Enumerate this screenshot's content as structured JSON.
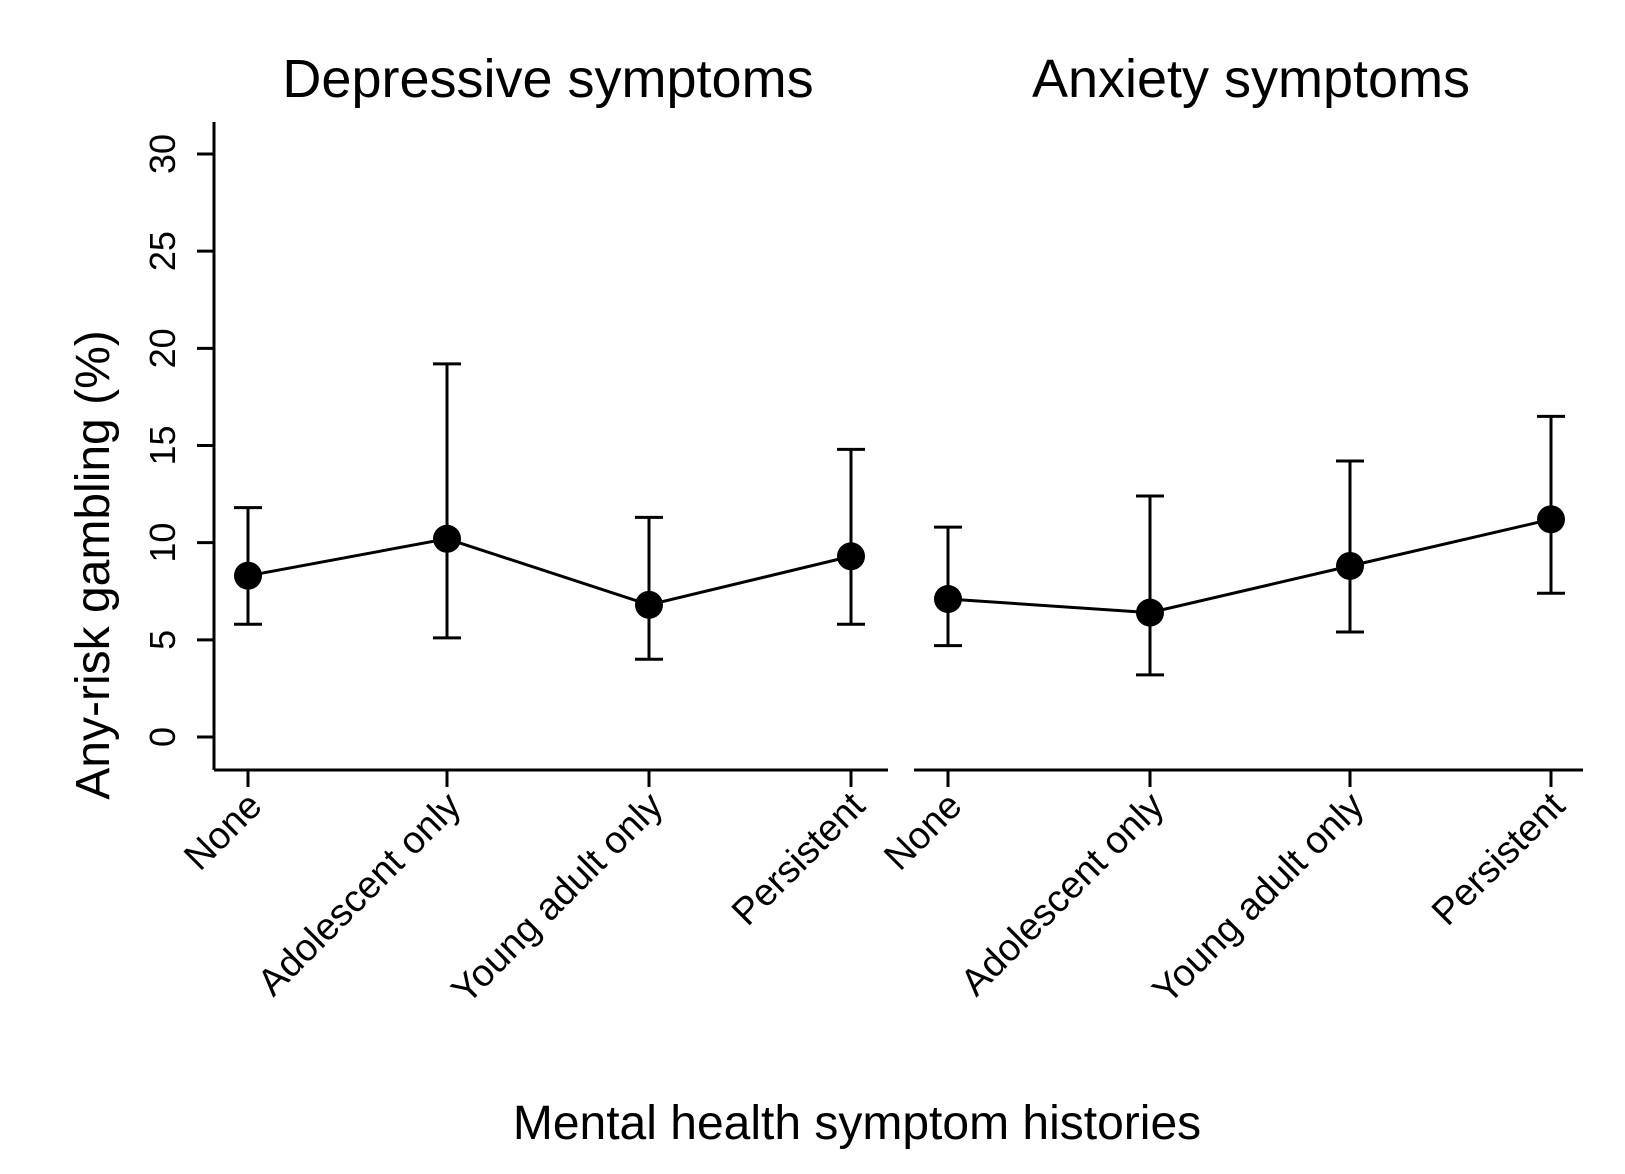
{
  "chart_data": {
    "type": "line",
    "xlabel": "Mental health symptom histories",
    "ylabel": "Any-risk gambling (%)",
    "ylim": [
      0,
      30
    ],
    "yticks": [
      0,
      5,
      10,
      15,
      20,
      25,
      30
    ],
    "ytick_labels": [
      "0",
      "5",
      "10",
      "15",
      "20",
      "25",
      "30"
    ],
    "grid": false,
    "panels": [
      {
        "title": "Depressive symptoms",
        "categories": [
          "None",
          "Adolescent only",
          "Young adult only",
          "Persistent"
        ],
        "values": [
          8.3,
          10.2,
          6.8,
          9.3
        ],
        "ci_lower": [
          5.8,
          5.1,
          4.0,
          5.8
        ],
        "ci_upper": [
          11.8,
          19.2,
          11.3,
          14.8
        ]
      },
      {
        "title": "Anxiety symptoms",
        "categories": [
          "None",
          "Adolescent only",
          "Young adult only",
          "Persistent"
        ],
        "values": [
          7.1,
          6.4,
          8.8,
          11.2
        ],
        "ci_lower": [
          4.7,
          3.2,
          5.4,
          7.4
        ],
        "ci_upper": [
          10.8,
          12.4,
          14.2,
          16.5
        ]
      }
    ]
  }
}
